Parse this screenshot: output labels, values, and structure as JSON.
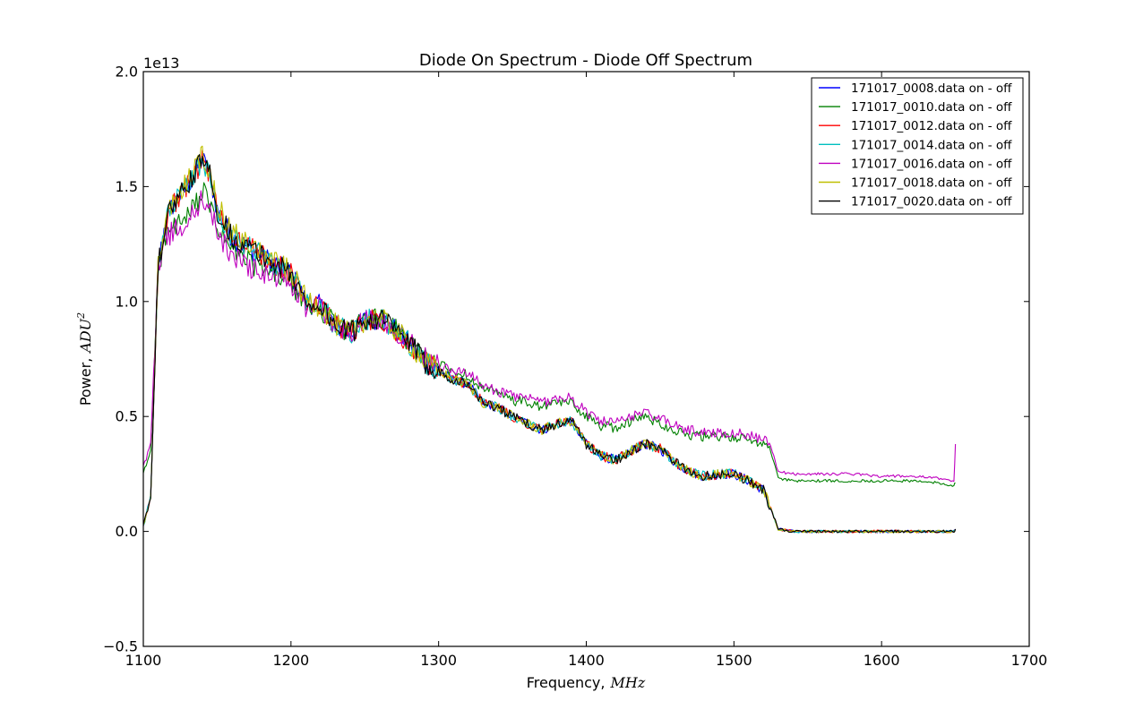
{
  "chart_data": {
    "type": "line",
    "title": "Diode On Spectrum - Diode Off Spectrum",
    "xlabel": "Frequency,",
    "xlabel_unit": "MHz",
    "ylabel": "Power,",
    "ylabel_unit": "ADU",
    "ylabel_unit_exp": "2",
    "y_offset_label": "1e13",
    "y_scale": 10000000000000.0,
    "xlim": [
      1100,
      1700
    ],
    "ylim": [
      -0.5,
      2.0
    ],
    "x_ticks": [
      1100,
      1200,
      1300,
      1400,
      1500,
      1600,
      1700
    ],
    "x_tick_labels": [
      "1100",
      "1200",
      "1300",
      "1400",
      "1500",
      "1600",
      "1700"
    ],
    "y_ticks": [
      -0.5,
      0.0,
      0.5,
      1.0,
      1.5,
      2.0
    ],
    "y_tick_labels": [
      "−0.5",
      "0.0",
      "0.5",
      "1.0",
      "1.5",
      "2.0"
    ],
    "grid": false,
    "legend_position": "top-right",
    "x": [
      1100,
      1105,
      1110,
      1115,
      1120,
      1130,
      1140,
      1145,
      1150,
      1160,
      1170,
      1180,
      1190,
      1200,
      1210,
      1220,
      1230,
      1240,
      1250,
      1260,
      1270,
      1280,
      1290,
      1300,
      1310,
      1320,
      1330,
      1340,
      1350,
      1360,
      1370,
      1380,
      1390,
      1400,
      1410,
      1420,
      1430,
      1440,
      1450,
      1460,
      1470,
      1480,
      1490,
      1500,
      1510,
      1520,
      1525,
      1530,
      1540,
      1560,
      1580,
      1600,
      1620,
      1640,
      1649,
      1650
    ],
    "series": [
      {
        "name": "171017_0008.data on - off",
        "color": "#0000ff",
        "values": [
          0.02,
          0.15,
          1.15,
          1.35,
          1.42,
          1.5,
          1.62,
          1.55,
          1.4,
          1.28,
          1.24,
          1.2,
          1.16,
          1.12,
          1.0,
          0.98,
          0.9,
          0.86,
          0.92,
          0.93,
          0.88,
          0.82,
          0.74,
          0.7,
          0.66,
          0.64,
          0.56,
          0.54,
          0.5,
          0.47,
          0.44,
          0.47,
          0.48,
          0.38,
          0.33,
          0.31,
          0.35,
          0.38,
          0.36,
          0.3,
          0.26,
          0.24,
          0.25,
          0.25,
          0.22,
          0.18,
          0.1,
          0.01,
          0.0,
          0.0,
          0.0,
          0.0,
          0.0,
          0.0,
          0.0,
          0.01
        ]
      },
      {
        "name": "171017_0010.data on - off",
        "color": "#008000",
        "values": [
          0.25,
          0.35,
          1.15,
          1.28,
          1.32,
          1.36,
          1.48,
          1.42,
          1.32,
          1.22,
          1.18,
          1.14,
          1.11,
          1.08,
          0.98,
          0.97,
          0.9,
          0.87,
          0.92,
          0.93,
          0.88,
          0.83,
          0.76,
          0.73,
          0.69,
          0.68,
          0.62,
          0.6,
          0.57,
          0.56,
          0.54,
          0.56,
          0.56,
          0.5,
          0.46,
          0.45,
          0.48,
          0.5,
          0.47,
          0.44,
          0.42,
          0.41,
          0.41,
          0.41,
          0.4,
          0.38,
          0.35,
          0.23,
          0.22,
          0.22,
          0.22,
          0.22,
          0.22,
          0.21,
          0.2,
          0.21
        ]
      },
      {
        "name": "171017_0012.data on - off",
        "color": "#ff0000",
        "values": [
          0.02,
          0.15,
          1.15,
          1.35,
          1.42,
          1.5,
          1.62,
          1.55,
          1.4,
          1.28,
          1.24,
          1.2,
          1.16,
          1.12,
          1.0,
          0.98,
          0.9,
          0.86,
          0.92,
          0.93,
          0.88,
          0.82,
          0.74,
          0.7,
          0.66,
          0.64,
          0.56,
          0.54,
          0.5,
          0.47,
          0.44,
          0.47,
          0.48,
          0.38,
          0.33,
          0.31,
          0.35,
          0.38,
          0.36,
          0.3,
          0.26,
          0.24,
          0.25,
          0.25,
          0.22,
          0.18,
          0.1,
          0.01,
          0.0,
          0.0,
          0.0,
          0.0,
          0.0,
          0.0,
          0.0,
          0.01
        ]
      },
      {
        "name": "171017_0014.data on - off",
        "color": "#00bfbf",
        "values": [
          0.02,
          0.15,
          1.15,
          1.35,
          1.42,
          1.5,
          1.62,
          1.55,
          1.4,
          1.28,
          1.24,
          1.2,
          1.16,
          1.12,
          1.0,
          0.98,
          0.9,
          0.86,
          0.92,
          0.93,
          0.88,
          0.82,
          0.74,
          0.7,
          0.66,
          0.64,
          0.56,
          0.54,
          0.5,
          0.47,
          0.44,
          0.47,
          0.48,
          0.38,
          0.33,
          0.31,
          0.35,
          0.38,
          0.36,
          0.3,
          0.26,
          0.24,
          0.25,
          0.25,
          0.22,
          0.18,
          0.1,
          0.01,
          0.0,
          0.0,
          0.0,
          0.0,
          0.0,
          0.0,
          0.0,
          0.01
        ]
      },
      {
        "name": "171017_0016.data on - off",
        "color": "#bf00bf",
        "values": [
          0.28,
          0.38,
          1.15,
          1.28,
          1.3,
          1.34,
          1.45,
          1.4,
          1.3,
          1.2,
          1.16,
          1.12,
          1.1,
          1.08,
          0.98,
          0.97,
          0.9,
          0.87,
          0.92,
          0.93,
          0.88,
          0.83,
          0.76,
          0.73,
          0.7,
          0.69,
          0.63,
          0.61,
          0.59,
          0.58,
          0.56,
          0.58,
          0.58,
          0.52,
          0.48,
          0.47,
          0.5,
          0.52,
          0.49,
          0.46,
          0.44,
          0.43,
          0.43,
          0.43,
          0.42,
          0.4,
          0.37,
          0.26,
          0.25,
          0.25,
          0.25,
          0.24,
          0.24,
          0.23,
          0.22,
          0.38
        ]
      },
      {
        "name": "171017_0018.data on - off",
        "color": "#bfbf00",
        "values": [
          0.02,
          0.15,
          1.15,
          1.36,
          1.43,
          1.52,
          1.64,
          1.57,
          1.42,
          1.3,
          1.26,
          1.21,
          1.17,
          1.13,
          1.01,
          0.98,
          0.9,
          0.86,
          0.92,
          0.93,
          0.88,
          0.82,
          0.74,
          0.7,
          0.66,
          0.64,
          0.56,
          0.54,
          0.5,
          0.47,
          0.44,
          0.47,
          0.48,
          0.38,
          0.33,
          0.31,
          0.35,
          0.38,
          0.36,
          0.3,
          0.26,
          0.24,
          0.25,
          0.25,
          0.22,
          0.18,
          0.1,
          0.01,
          0.0,
          0.0,
          0.0,
          0.0,
          0.0,
          0.0,
          0.0,
          0.01
        ]
      },
      {
        "name": "171017_0020.data on - off",
        "color": "#000000",
        "values": [
          0.02,
          0.15,
          1.15,
          1.35,
          1.42,
          1.5,
          1.62,
          1.55,
          1.4,
          1.28,
          1.24,
          1.2,
          1.16,
          1.12,
          1.0,
          0.98,
          0.9,
          0.86,
          0.92,
          0.93,
          0.88,
          0.82,
          0.74,
          0.7,
          0.66,
          0.64,
          0.56,
          0.54,
          0.5,
          0.47,
          0.44,
          0.47,
          0.48,
          0.38,
          0.33,
          0.31,
          0.35,
          0.38,
          0.36,
          0.3,
          0.26,
          0.24,
          0.25,
          0.25,
          0.22,
          0.18,
          0.1,
          0.01,
          0.0,
          0.0,
          0.0,
          0.0,
          0.0,
          0.0,
          0.0,
          0.01
        ]
      }
    ]
  }
}
